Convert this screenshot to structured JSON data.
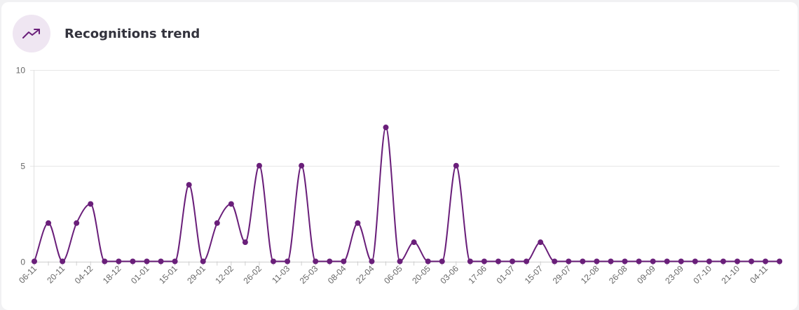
{
  "title": "Recognitions trend",
  "icon": "trending-up-icon",
  "colors": {
    "accent": "#6a1f7a",
    "icon_bg": "#efe6f2",
    "grid": "#e6e6e6"
  },
  "chart_data": {
    "type": "line",
    "ylim": [
      0,
      10
    ],
    "y_ticks": [
      0,
      5,
      10
    ],
    "x_tick_labels": [
      "06-11",
      "20-11",
      "04-12",
      "18-12",
      "01-01",
      "15-01",
      "29-01",
      "12-02",
      "26-02",
      "11-03",
      "25-03",
      "08-04",
      "22-04",
      "06-05",
      "20-05",
      "03-06",
      "17-06",
      "01-07",
      "15-07",
      "29-07",
      "12-08",
      "26-08",
      "09-09",
      "23-09",
      "07-10",
      "21-10",
      "04-11"
    ],
    "values": [
      0,
      2,
      0,
      2,
      3,
      0,
      0,
      0,
      0,
      0,
      0,
      4,
      0,
      2,
      3,
      1,
      5,
      0,
      0,
      5,
      0,
      0,
      0,
      2,
      0,
      7,
      0,
      1,
      0,
      0,
      5,
      0,
      0,
      0,
      0,
      0,
      1,
      0,
      0,
      0,
      0,
      0,
      0,
      0,
      0,
      0,
      0,
      0,
      0,
      0,
      0,
      0,
      0,
      0
    ]
  }
}
